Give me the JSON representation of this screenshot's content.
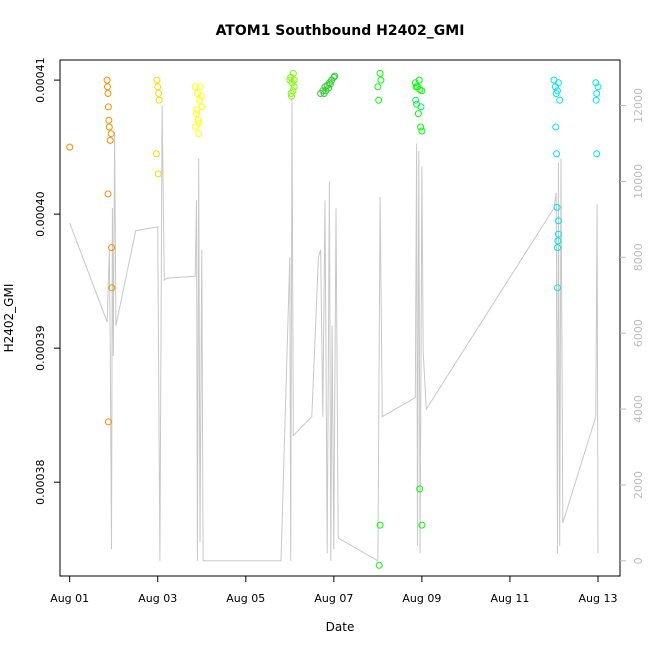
{
  "chart_data": {
    "type": "scatter",
    "title": "ATOM1 Southbound H2402_GMI",
    "xlabel": "Date",
    "ylabel": "H2402_GMI",
    "x_ticks": [
      {
        "day": 1,
        "label": "Aug 01"
      },
      {
        "day": 3,
        "label": "Aug 03"
      },
      {
        "day": 5,
        "label": "Aug 05"
      },
      {
        "day": 7,
        "label": "Aug 07"
      },
      {
        "day": 9,
        "label": "Aug 09"
      },
      {
        "day": 11,
        "label": "Aug 11"
      },
      {
        "day": 13,
        "label": "Aug 13"
      }
    ],
    "xlim": [
      0.78,
      13.5
    ],
    "ylim": [
      0.000373,
      0.0004115
    ],
    "y_ticks": [
      {
        "value": 0.00038,
        "label": "0.00038"
      },
      {
        "value": 0.00039,
        "label": "0.00039"
      },
      {
        "value": 0.0004,
        "label": "0.00040"
      },
      {
        "value": 0.00041,
        "label": "0.00041"
      }
    ],
    "y2lim": [
      -400,
      13200
    ],
    "y2_ticks": [
      {
        "value": 0,
        "label": "0"
      },
      {
        "value": 2000,
        "label": "2000"
      },
      {
        "value": 4000,
        "label": "4000"
      },
      {
        "value": 6000,
        "label": "6000"
      },
      {
        "value": 8000,
        "label": "8000"
      },
      {
        "value": 10000,
        "label": "10000"
      },
      {
        "value": 12000,
        "label": "12000"
      }
    ],
    "line_color": "#c8c8c8",
    "line_series": [
      [
        1.0,
        8900
      ],
      [
        1.85,
        6300
      ],
      [
        1.9,
        8200
      ],
      [
        1.92,
        5800
      ],
      [
        1.95,
        300
      ],
      [
        1.97,
        9300
      ],
      [
        1.99,
        5400
      ],
      [
        2.02,
        11300
      ],
      [
        2.05,
        6200
      ],
      [
        2.5,
        8700
      ],
      [
        3.0,
        8800
      ],
      [
        3.05,
        0
      ],
      [
        3.1,
        12000
      ],
      [
        3.15,
        7400
      ],
      [
        3.2,
        7450
      ],
      [
        3.85,
        7500
      ],
      [
        3.88,
        9500
      ],
      [
        3.9,
        0
      ],
      [
        3.93,
        10600
      ],
      [
        3.96,
        500
      ],
      [
        4.0,
        8200
      ],
      [
        4.03,
        0
      ],
      [
        5.8,
        0
      ],
      [
        6.0,
        8000
      ],
      [
        6.02,
        0
      ],
      [
        6.05,
        12200
      ],
      [
        6.08,
        3300
      ],
      [
        6.5,
        3800
      ],
      [
        6.65,
        8000
      ],
      [
        6.7,
        8200
      ],
      [
        6.75,
        3800
      ],
      [
        6.8,
        9500
      ],
      [
        6.85,
        200
      ],
      [
        6.9,
        10000
      ],
      [
        6.93,
        0
      ],
      [
        6.96,
        6200
      ],
      [
        7.0,
        300
      ],
      [
        7.05,
        9300
      ],
      [
        7.1,
        600
      ],
      [
        8.0,
        0
      ],
      [
        8.05,
        9600
      ],
      [
        8.1,
        3800
      ],
      [
        8.85,
        4300
      ],
      [
        8.88,
        11000
      ],
      [
        8.9,
        400
      ],
      [
        8.93,
        10800
      ],
      [
        8.96,
        200
      ],
      [
        9.0,
        10400
      ],
      [
        9.03,
        5500
      ],
      [
        9.1,
        4000
      ],
      [
        12.0,
        9300
      ],
      [
        12.05,
        9700
      ],
      [
        12.08,
        200
      ],
      [
        12.1,
        10500
      ],
      [
        12.13,
        400
      ],
      [
        12.16,
        10600
      ],
      [
        12.2,
        1000
      ],
      [
        12.95,
        3800
      ],
      [
        12.98,
        9400
      ],
      [
        13.0,
        200
      ]
    ],
    "series": [
      {
        "color": "#ff8c00",
        "points": [
          [
            1.0,
            0.000405
          ],
          [
            1.85,
            0.00041
          ],
          [
            1.86,
            0.0004095
          ],
          [
            1.87,
            0.000409
          ],
          [
            1.88,
            0.000408
          ],
          [
            1.89,
            0.000407
          ],
          [
            1.9,
            0.0004065
          ],
          [
            1.92,
            0.0004055
          ],
          [
            1.94,
            0.000406
          ],
          [
            1.87,
            0.0004015
          ],
          [
            1.95,
            0.0003975
          ],
          [
            1.96,
            0.0003945
          ],
          [
            1.88,
            0.0003845
          ]
        ]
      },
      {
        "color": "#ffd700",
        "points": [
          [
            2.98,
            0.00041
          ],
          [
            3.0,
            0.0004095
          ],
          [
            3.02,
            0.000409
          ],
          [
            3.01,
            0.000403
          ],
          [
            2.97,
            0.0004045
          ],
          [
            3.03,
            0.0004085
          ]
        ]
      },
      {
        "color": "#ffff00",
        "points": [
          [
            3.85,
            0.0004095
          ],
          [
            3.9,
            0.000409
          ],
          [
            3.95,
            0.0004085
          ],
          [
            4.0,
            0.000408
          ],
          [
            3.88,
            0.0004075
          ],
          [
            3.92,
            0.000407
          ],
          [
            3.86,
            0.0004065
          ],
          [
            3.93,
            0.000406
          ],
          [
            3.97,
            0.0004095
          ],
          [
            3.99,
            0.0004088
          ],
          [
            3.89,
            0.0004078
          ],
          [
            3.94,
            0.0004068
          ]
        ]
      },
      {
        "color": "#7cfc00",
        "points": [
          [
            6.0,
            0.00041
          ],
          [
            6.05,
            0.0004098
          ],
          [
            6.1,
            0.0004095
          ],
          [
            6.03,
            0.000409
          ],
          [
            6.08,
            0.0004105
          ],
          [
            6.02,
            0.0004102
          ],
          [
            6.07,
            0.0004092
          ],
          [
            6.04,
            0.0004088
          ],
          [
            6.1,
            0.00041
          ]
        ]
      },
      {
        "color": "#32cd32",
        "points": [
          [
            6.7,
            0.000409
          ],
          [
            6.75,
            0.0004092
          ],
          [
            6.8,
            0.0004095
          ],
          [
            6.85,
            0.0004096
          ],
          [
            6.9,
            0.0004098
          ],
          [
            6.95,
            0.00041
          ],
          [
            7.0,
            0.0004102
          ],
          [
            7.02,
            0.0004103
          ],
          [
            6.78,
            0.000409
          ],
          [
            6.88,
            0.0004094
          ],
          [
            6.92,
            0.0004097
          ],
          [
            6.82,
            0.0004092
          ]
        ]
      },
      {
        "color": "#00ff00",
        "points": [
          [
            8.0,
            0.0004095
          ],
          [
            8.02,
            0.0004085
          ],
          [
            8.05,
            0.0004105
          ],
          [
            8.07,
            0.00041
          ],
          [
            8.85,
            0.0004098
          ],
          [
            8.9,
            0.0004095
          ],
          [
            8.95,
            0.0004093
          ],
          [
            9.0,
            0.0004092
          ],
          [
            8.88,
            0.0004082
          ],
          [
            8.92,
            0.0004075
          ],
          [
            8.97,
            0.0004065
          ],
          [
            9.0,
            0.0004062
          ],
          [
            8.87,
            0.0004095
          ],
          [
            8.94,
            0.00041
          ],
          [
            8.95,
            0.0003795
          ],
          [
            9.0,
            0.0003768
          ],
          [
            8.05,
            0.0003768
          ],
          [
            8.03,
            0.0003738
          ]
        ]
      },
      {
        "color": "#00ee76",
        "points": [
          [
            8.98,
            0.000408
          ],
          [
            8.86,
            0.0004085
          ]
        ]
      },
      {
        "color": "#00e5ee",
        "points": [
          [
            12.0,
            0.00041
          ],
          [
            12.03,
            0.0004095
          ],
          [
            12.05,
            0.000409
          ],
          [
            12.1,
            0.0004098
          ],
          [
            12.13,
            0.0004085
          ],
          [
            12.08,
            0.0004092
          ],
          [
            12.04,
            0.0004065
          ],
          [
            12.06,
            0.0004045
          ],
          [
            12.07,
            0.0004005
          ],
          [
            12.1,
            0.0003995
          ],
          [
            12.09,
            0.000398
          ],
          [
            12.08,
            0.0003975
          ],
          [
            12.1,
            0.0003985
          ],
          [
            12.08,
            0.0003945
          ],
          [
            12.95,
            0.0004098
          ],
          [
            12.97,
            0.000409
          ],
          [
            13.0,
            0.0004095
          ],
          [
            12.96,
            0.0004085
          ],
          [
            12.97,
            0.0004045
          ]
        ]
      }
    ]
  }
}
